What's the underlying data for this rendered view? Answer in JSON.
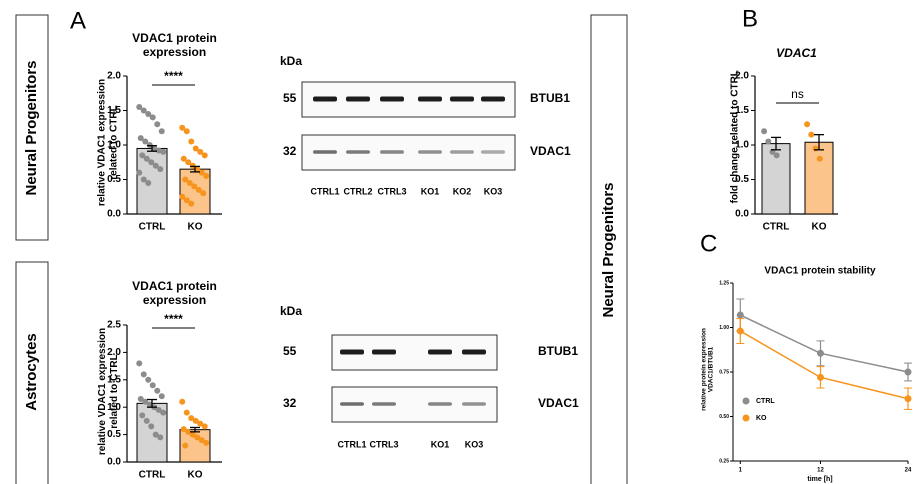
{
  "panel_labels": [
    "A",
    "B",
    "C"
  ],
  "side_labels": [
    "Neural Progenitors",
    "Astrocytes",
    "Neural Progenitors"
  ],
  "blots": [
    {
      "unit": "kDa",
      "rows": [
        {
          "kda": "55",
          "protein": "BTUB1"
        },
        {
          "kda": "32",
          "protein": "VDAC1"
        }
      ],
      "lanes": [
        "CTRL1",
        "CTRL2",
        "CTRL3",
        "KO1",
        "KO2",
        "KO3"
      ]
    },
    {
      "unit": "kDa",
      "rows": [
        {
          "kda": "55",
          "protein": "BTUB1"
        },
        {
          "kda": "32",
          "protein": "VDAC1"
        }
      ],
      "lanes": [
        "CTRL1",
        "CTRL3",
        "KO1",
        "KO3"
      ]
    }
  ],
  "chart_data": [
    {
      "type": "bar",
      "title": "VDAC1 protein expression",
      "y_label": "relative VDAC1 expression related to CTRL",
      "categories": [
        "CTRL",
        "KO"
      ],
      "values": [
        0.95,
        0.65
      ],
      "errors": [
        0.04,
        0.04
      ],
      "significance": "****",
      "points": [
        [
          1.55,
          1.5,
          1.45,
          1.4,
          1.3,
          1.2,
          1.1,
          1.05,
          1.0,
          0.95,
          0.92,
          0.9,
          0.85,
          0.8,
          0.75,
          0.7,
          0.65,
          0.6,
          0.5,
          0.45
        ],
        [
          1.25,
          1.2,
          1.05,
          0.95,
          0.9,
          0.85,
          0.8,
          0.75,
          0.7,
          0.65,
          0.6,
          0.55,
          0.5,
          0.45,
          0.4,
          0.35,
          0.3,
          0.25,
          0.2,
          0.15
        ]
      ],
      "bar_colors": [
        "#d4d4d4",
        "#fbc48a"
      ],
      "point_colors": [
        "#8c8c8c",
        "#f7941d"
      ],
      "ylim": [
        0,
        2.0
      ],
      "yticks": [
        {
          "value": 0,
          "label": "0.0"
        },
        {
          "value": 0.5,
          "label": "0.5"
        },
        {
          "value": 1.0,
          "label": "1.0"
        },
        {
          "value": 1.5,
          "label": "1.5"
        },
        {
          "value": 2.0,
          "label": "2.0"
        }
      ]
    },
    {
      "type": "bar",
      "title": "VDAC1 protein expression",
      "y_label": "relative VDAC1 expression related to CTRL",
      "categories": [
        "CTRL",
        "KO"
      ],
      "values": [
        1.07,
        0.59
      ],
      "errors": [
        0.07,
        0.04
      ],
      "significance": "****",
      "points": [
        [
          1.8,
          1.6,
          1.5,
          1.4,
          1.3,
          1.2,
          1.15,
          1.1,
          1.05,
          1.0,
          0.95,
          0.9,
          0.85,
          0.75,
          0.65,
          0.5,
          0.45
        ],
        [
          1.1,
          0.9,
          0.8,
          0.75,
          0.7,
          0.65,
          0.6,
          0.55,
          0.5,
          0.45,
          0.4,
          0.35,
          0.3
        ]
      ],
      "bar_colors": [
        "#d4d4d4",
        "#fbc48a"
      ],
      "point_colors": [
        "#8c8c8c",
        "#f7941d"
      ],
      "ylim": [
        0,
        2.5
      ],
      "yticks": [
        {
          "value": 0,
          "label": "0.0"
        },
        {
          "value": 0.5,
          "label": "0.5"
        },
        {
          "value": 1.0,
          "label": "1.0"
        },
        {
          "value": 1.5,
          "label": "1.5"
        },
        {
          "value": 2.0,
          "label": "2.0"
        },
        {
          "value": 2.5,
          "label": "2.5"
        }
      ]
    },
    {
      "type": "bar",
      "title": "VDAC1",
      "y_label": "fold change related to CTRL",
      "categories": [
        "CTRL",
        "KO"
      ],
      "values": [
        1.02,
        1.04
      ],
      "errors": [
        0.09,
        0.11
      ],
      "significance": "ns",
      "points": [
        [
          1.2,
          1.05,
          0.9,
          0.85
        ],
        [
          1.3,
          1.15,
          0.95,
          0.8
        ]
      ],
      "bar_colors": [
        "#d4d4d4",
        "#fbc48a"
      ],
      "point_colors": [
        "#8c8c8c",
        "#f7941d"
      ],
      "ylim": [
        0,
        2.0
      ],
      "yticks": [
        {
          "value": 0,
          "label": "0.0"
        },
        {
          "value": 0.5,
          "label": "0.5"
        },
        {
          "value": 1.0,
          "label": "1.0"
        },
        {
          "value": 1.5,
          "label": "1.5"
        },
        {
          "value": 2.0,
          "label": "2.0"
        }
      ]
    },
    {
      "type": "line",
      "title": "VDAC1 protein stability",
      "x_label": "time [h]",
      "y_label": "relative protein expression VDAC1/BTUB1",
      "x": [
        1,
        12,
        24
      ],
      "series": [
        {
          "name": "CTRL",
          "color": "#8c8c8c",
          "values": [
            1.07,
            0.855,
            0.75
          ],
          "errors": [
            0.09,
            0.07,
            0.05
          ]
        },
        {
          "name": "KO",
          "color": "#f7941d",
          "values": [
            0.98,
            0.72,
            0.6
          ],
          "errors": [
            0.07,
            0.06,
            0.06
          ]
        }
      ],
      "xlim": [
        0,
        24
      ],
      "xticks": [
        1,
        12,
        24
      ],
      "ylim": [
        0.25,
        1.25
      ],
      "yticks": [
        0.25,
        {
          "value": 0.5,
          "label": "0.50"
        },
        0.75,
        {
          "value": 1.0,
          "label": "1.00"
        },
        1.25
      ]
    }
  ]
}
